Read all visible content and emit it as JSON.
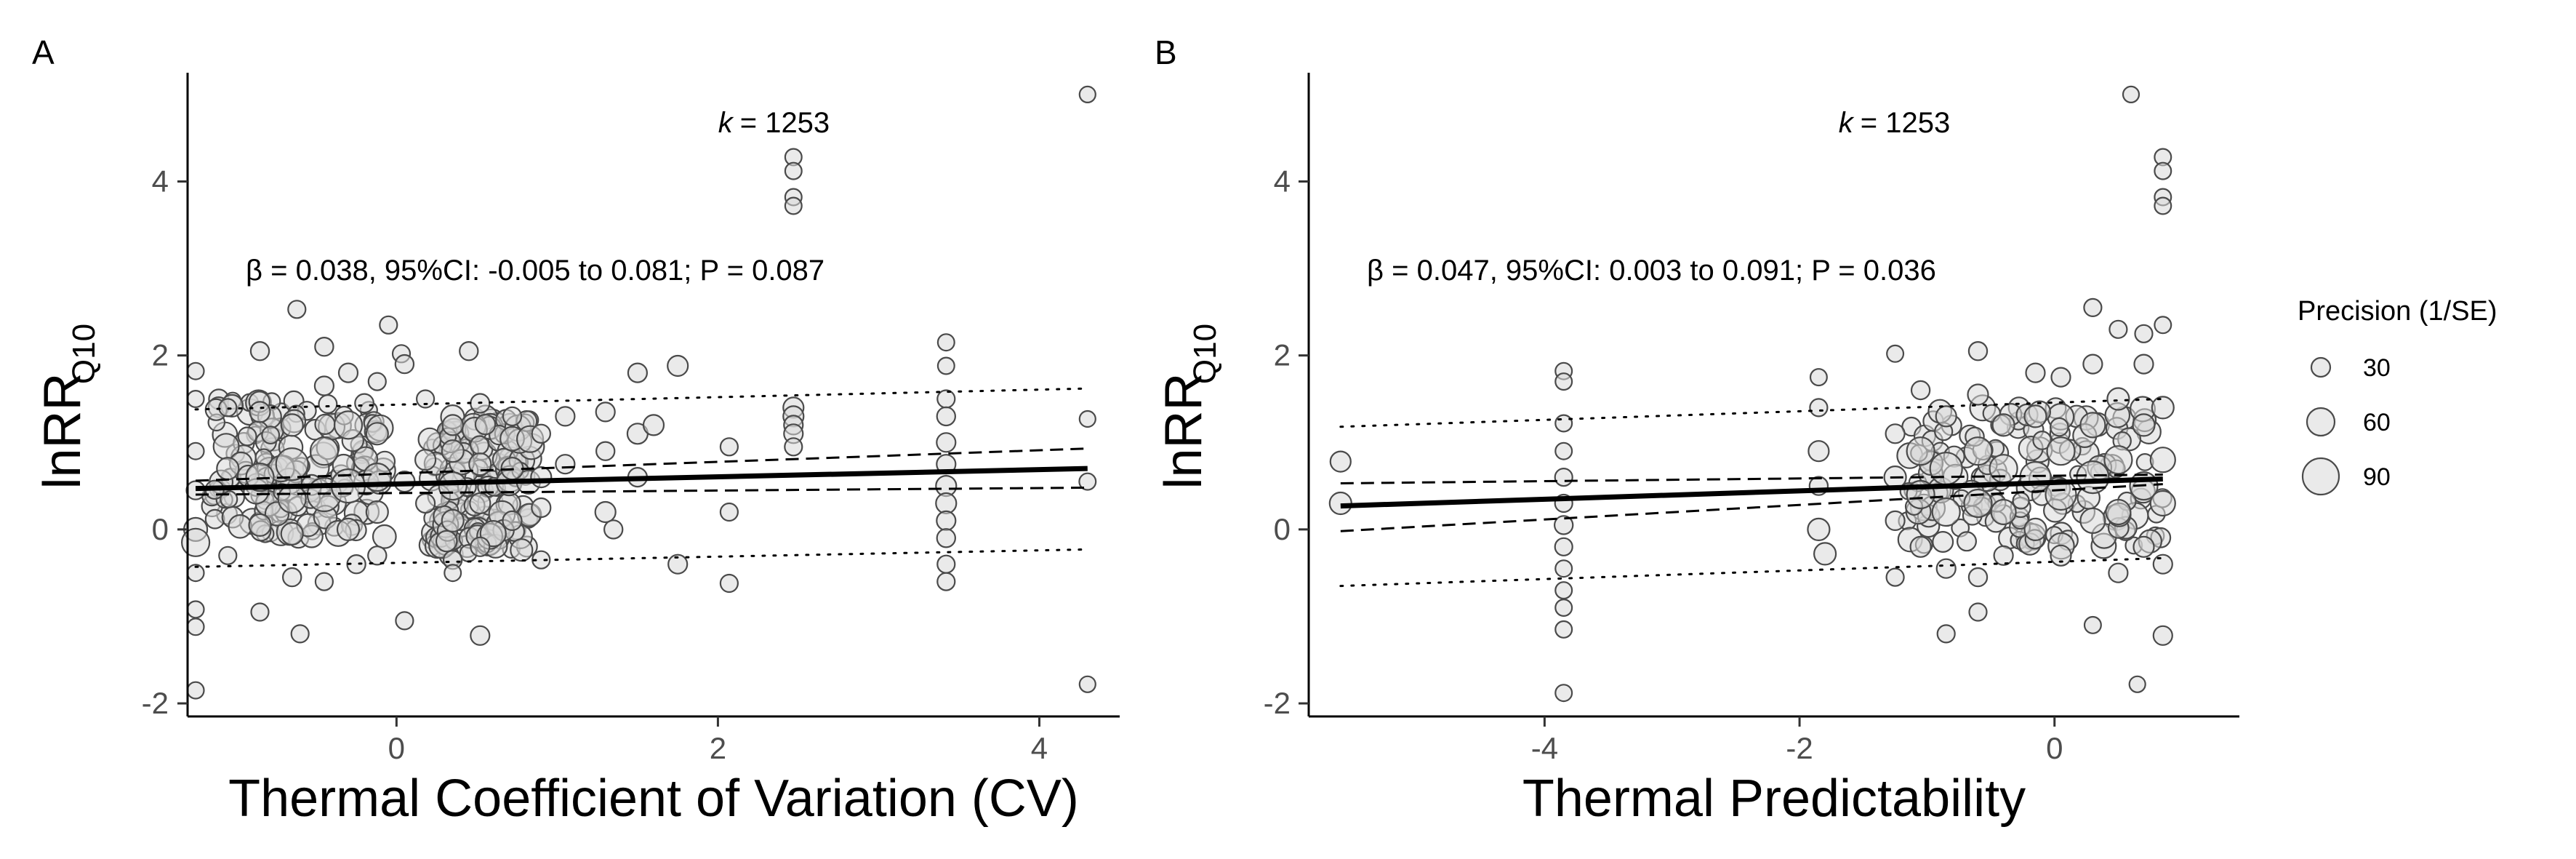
{
  "colors": {
    "point_fill": "#d9d9d9",
    "point_stroke": "#4a4a4a",
    "axis": "#000000",
    "tick_text": "#4d4d4d"
  },
  "legend": {
    "title": "Precision (1/SE)",
    "items": [
      {
        "label": "30",
        "value": 30
      },
      {
        "label": "60",
        "value": 60
      },
      {
        "label": "90",
        "value": 90
      }
    ]
  },
  "chart_data": [
    {
      "panel": "A",
      "type": "scatter",
      "xlabel": "Thermal Coefficient of Variation (CV)",
      "ylabel": "lnRR",
      "ylabel_subscript": "Q10",
      "annotation_k_label": "k",
      "annotation_k_value": "= 1253",
      "stat_text": "β = 0.038, 95%CI: -0.005 to 0.081; P = 0.087",
      "xlim": [
        -1.3,
        4.5
      ],
      "ylim": [
        -2.15,
        5.25
      ],
      "xticks": [
        0,
        2,
        4
      ],
      "yticks": [
        -2,
        0,
        2,
        4
      ],
      "fit": {
        "x0": -1.25,
        "x1": 4.3,
        "y0": 0.47,
        "y1": 0.7
      },
      "ci_upper": {
        "x0": -1.25,
        "x1": 4.3,
        "y0": 0.56,
        "y1": 0.93
      },
      "ci_lower": {
        "x0": -1.25,
        "x1": 4.3,
        "y0": 0.4,
        "y1": 0.48
      },
      "pi_upper": {
        "x0": -1.25,
        "x1": 4.3,
        "y0": 1.38,
        "y1": 1.62
      },
      "pi_lower": {
        "x0": -1.25,
        "x1": 4.3,
        "y0": -0.43,
        "y1": -0.23
      },
      "points": [
        [
          4.3,
          5.0,
          20
        ],
        [
          2.47,
          4.28,
          22
        ],
        [
          2.47,
          4.12,
          22
        ],
        [
          2.47,
          3.82,
          22
        ],
        [
          2.47,
          3.72,
          22
        ],
        [
          4.3,
          1.27,
          20
        ],
        [
          4.3,
          0.55,
          22
        ],
        [
          4.3,
          -1.78,
          20
        ],
        [
          -0.62,
          2.53,
          25
        ],
        [
          -0.05,
          2.35,
          25
        ],
        [
          0.45,
          2.05,
          28
        ],
        [
          0.03,
          2.02,
          25
        ],
        [
          -1.25,
          1.82,
          22
        ],
        [
          -1.25,
          1.5,
          22
        ],
        [
          -1.25,
          0.9,
          22
        ],
        [
          -1.25,
          0.45,
          28
        ],
        [
          -1.25,
          0.0,
          45
        ],
        [
          -1.25,
          -0.15,
          60
        ],
        [
          -1.25,
          -0.5,
          22
        ],
        [
          -1.25,
          -0.92,
          22
        ],
        [
          -1.25,
          -1.12,
          22
        ],
        [
          -1.25,
          -1.85,
          22
        ],
        [
          -1.05,
          1.4,
          25
        ],
        [
          -1.05,
          0.7,
          40
        ],
        [
          -1.05,
          -0.3,
          25
        ],
        [
          -0.85,
          2.05,
          28
        ],
        [
          -0.85,
          1.35,
          35
        ],
        [
          -0.85,
          0.6,
          60
        ],
        [
          -0.85,
          0.05,
          40
        ],
        [
          -0.85,
          -0.95,
          25
        ],
        [
          -0.65,
          1.2,
          40
        ],
        [
          -0.65,
          0.75,
          75
        ],
        [
          -0.65,
          0.35,
          60
        ],
        [
          -0.65,
          -0.05,
          40
        ],
        [
          -0.65,
          -0.55,
          28
        ],
        [
          -0.6,
          -1.2,
          25
        ],
        [
          -0.45,
          2.1,
          28
        ],
        [
          -0.45,
          1.65,
          30
        ],
        [
          -0.45,
          0.9,
          60
        ],
        [
          -0.45,
          0.4,
          80
        ],
        [
          -0.45,
          -0.6,
          25
        ],
        [
          -0.3,
          1.8,
          30
        ],
        [
          -0.3,
          1.2,
          60
        ],
        [
          -0.3,
          0.5,
          80
        ],
        [
          -0.3,
          0.0,
          40
        ],
        [
          -0.25,
          -0.4,
          28
        ],
        [
          -0.12,
          1.7,
          25
        ],
        [
          -0.12,
          1.1,
          40
        ],
        [
          -0.12,
          0.6,
          60
        ],
        [
          -0.12,
          0.2,
          40
        ],
        [
          -0.12,
          -0.3,
          28
        ],
        [
          0.05,
          1.9,
          28
        ],
        [
          0.05,
          0.55,
          35
        ],
        [
          0.05,
          -1.05,
          25
        ],
        [
          0.18,
          1.5,
          25
        ],
        [
          0.18,
          0.8,
          35
        ],
        [
          0.18,
          0.3,
          30
        ],
        [
          0.35,
          1.2,
          35
        ],
        [
          0.35,
          0.9,
          40
        ],
        [
          0.35,
          0.5,
          60
        ],
        [
          0.35,
          0.1,
          40
        ],
        [
          0.35,
          -0.35,
          28
        ],
        [
          0.35,
          -0.5,
          22
        ],
        [
          0.52,
          1.45,
          30
        ],
        [
          0.52,
          0.75,
          40
        ],
        [
          0.52,
          0.3,
          35
        ],
        [
          0.52,
          -0.2,
          30
        ],
        [
          0.52,
          -1.22,
          30
        ],
        [
          0.72,
          1.3,
          28
        ],
        [
          0.72,
          0.7,
          40
        ],
        [
          0.72,
          0.1,
          30
        ],
        [
          0.9,
          1.1,
          28
        ],
        [
          0.9,
          0.6,
          35
        ],
        [
          0.9,
          0.25,
          30
        ],
        [
          0.9,
          -0.35,
          25
        ],
        [
          1.05,
          1.3,
          30
        ],
        [
          1.05,
          0.75,
          30
        ],
        [
          1.3,
          1.35,
          30
        ],
        [
          1.3,
          0.9,
          28
        ],
        [
          1.3,
          0.2,
          35
        ],
        [
          1.35,
          0.0,
          28
        ],
        [
          1.5,
          1.8,
          30
        ],
        [
          1.5,
          1.1,
          35
        ],
        [
          1.5,
          0.6,
          30
        ],
        [
          1.6,
          1.2,
          35
        ],
        [
          1.75,
          1.88,
          35
        ],
        [
          1.75,
          -0.4,
          30
        ],
        [
          2.07,
          0.95,
          25
        ],
        [
          2.07,
          0.2,
          25
        ],
        [
          2.07,
          -0.62,
          25
        ],
        [
          2.47,
          1.4,
          35
        ],
        [
          2.47,
          1.3,
          35
        ],
        [
          2.47,
          1.2,
          30
        ],
        [
          2.47,
          1.1,
          30
        ],
        [
          2.47,
          0.95,
          25
        ],
        [
          3.42,
          2.15,
          22
        ],
        [
          3.42,
          1.88,
          22
        ],
        [
          3.42,
          1.5,
          25
        ],
        [
          3.42,
          1.3,
          28
        ],
        [
          3.42,
          1.0,
          30
        ],
        [
          3.42,
          0.75,
          30
        ],
        [
          3.42,
          0.5,
          35
        ],
        [
          3.42,
          0.3,
          35
        ],
        [
          3.42,
          0.1,
          30
        ],
        [
          3.42,
          -0.1,
          28
        ],
        [
          3.42,
          -0.4,
          25
        ],
        [
          3.42,
          -0.6,
          25
        ]
      ],
      "cluster_bands": [
        [
          -1.15,
          -0.05,
          -0.1,
          1.5
        ],
        [
          0.2,
          0.85,
          -0.3,
          1.3
        ]
      ]
    },
    {
      "panel": "B",
      "type": "scatter",
      "xlabel": "Thermal Predictability",
      "ylabel": "lnRR",
      "ylabel_subscript": "Q10",
      "annotation_k_label": "k",
      "annotation_k_value": "= 1253",
      "stat_text": "β = 0.047, 95%CI: 0.003 to 0.091; P = 0.036",
      "xlim": [
        -5.85,
        1.45
      ],
      "ylim": [
        -2.15,
        5.25
      ],
      "xticks": [
        -4,
        -2,
        0
      ],
      "yticks": [
        -2,
        0,
        2,
        4
      ],
      "fit": {
        "x0": -5.6,
        "x1": 0.85,
        "y0": 0.27,
        "y1": 0.58
      },
      "ci_upper": {
        "x0": -5.6,
        "x1": 0.85,
        "y0": 0.53,
        "y1": 0.63
      },
      "ci_lower": {
        "x0": -5.6,
        "x1": 0.85,
        "y0": -0.02,
        "y1": 0.52
      },
      "pi_upper": {
        "x0": -5.6,
        "x1": 0.85,
        "y0": 1.18,
        "y1": 1.5
      },
      "pi_lower": {
        "x0": -5.6,
        "x1": 0.85,
        "y0": -0.65,
        "y1": -0.33
      },
      "points": [
        [
          0.6,
          5.0,
          20
        ],
        [
          0.85,
          4.28,
          22
        ],
        [
          0.85,
          4.12,
          22
        ],
        [
          0.85,
          3.82,
          22
        ],
        [
          0.85,
          3.72,
          22
        ],
        [
          -5.6,
          0.78,
          35
        ],
        [
          -5.6,
          0.3,
          40
        ],
        [
          -3.85,
          1.82,
          22
        ],
        [
          -3.85,
          1.7,
          22
        ],
        [
          -3.85,
          1.22,
          22
        ],
        [
          -3.85,
          0.9,
          22
        ],
        [
          -3.85,
          0.6,
          25
        ],
        [
          -3.85,
          0.3,
          25
        ],
        [
          -3.85,
          0.05,
          28
        ],
        [
          -3.85,
          -0.2,
          25
        ],
        [
          -3.85,
          -0.45,
          22
        ],
        [
          -3.85,
          -0.7,
          22
        ],
        [
          -3.85,
          -0.9,
          22
        ],
        [
          -3.85,
          -1.15,
          22
        ],
        [
          -3.85,
          -1.88,
          22
        ],
        [
          -1.85,
          1.75,
          22
        ],
        [
          -1.85,
          1.4,
          25
        ],
        [
          -1.85,
          0.9,
          35
        ],
        [
          -1.85,
          0.5,
          28
        ],
        [
          -1.85,
          0.0,
          40
        ],
        [
          -1.8,
          -0.28,
          40
        ],
        [
          -1.25,
          2.02,
          22
        ],
        [
          -1.25,
          1.1,
          30
        ],
        [
          -1.25,
          0.6,
          40
        ],
        [
          -1.25,
          0.1,
          30
        ],
        [
          -1.25,
          -0.55,
          25
        ],
        [
          -1.05,
          1.6,
          28
        ],
        [
          -1.05,
          0.9,
          60
        ],
        [
          -1.05,
          0.4,
          60
        ],
        [
          -1.05,
          -0.2,
          35
        ],
        [
          -0.85,
          1.3,
          35
        ],
        [
          -0.85,
          0.7,
          75
        ],
        [
          -0.85,
          0.2,
          60
        ],
        [
          -0.85,
          -0.45,
          30
        ],
        [
          -0.85,
          -1.2,
          25
        ],
        [
          -0.6,
          2.05,
          28
        ],
        [
          -0.6,
          1.55,
          35
        ],
        [
          -0.6,
          0.9,
          60
        ],
        [
          -0.6,
          0.3,
          60
        ],
        [
          -0.6,
          -0.55,
          28
        ],
        [
          -0.6,
          -0.95,
          25
        ],
        [
          -0.4,
          1.2,
          40
        ],
        [
          -0.4,
          0.7,
          60
        ],
        [
          -0.4,
          0.2,
          50
        ],
        [
          -0.4,
          -0.3,
          30
        ],
        [
          -0.15,
          1.8,
          30
        ],
        [
          -0.15,
          1.3,
          40
        ],
        [
          -0.15,
          0.6,
          70
        ],
        [
          -0.15,
          0.0,
          40
        ],
        [
          0.05,
          1.75,
          30
        ],
        [
          0.05,
          0.9,
          60
        ],
        [
          0.05,
          0.4,
          70
        ],
        [
          0.05,
          -0.3,
          35
        ],
        [
          0.3,
          2.55,
          25
        ],
        [
          0.3,
          1.9,
          30
        ],
        [
          0.3,
          1.2,
          50
        ],
        [
          0.3,
          0.6,
          75
        ],
        [
          0.3,
          0.1,
          50
        ],
        [
          0.3,
          -1.1,
          22
        ],
        [
          0.5,
          2.3,
          25
        ],
        [
          0.5,
          1.5,
          40
        ],
        [
          0.5,
          0.8,
          60
        ],
        [
          0.5,
          0.2,
          50
        ],
        [
          0.5,
          -0.5,
          30
        ],
        [
          0.7,
          2.25,
          25
        ],
        [
          0.7,
          1.9,
          30
        ],
        [
          0.7,
          1.2,
          40
        ],
        [
          0.7,
          0.5,
          60
        ],
        [
          0.7,
          -0.2,
          35
        ],
        [
          0.65,
          -1.78,
          20
        ],
        [
          0.85,
          2.35,
          22
        ],
        [
          0.85,
          1.4,
          40
        ],
        [
          0.85,
          0.8,
          50
        ],
        [
          0.85,
          0.3,
          50
        ],
        [
          0.85,
          -0.4,
          30
        ],
        [
          0.85,
          -1.22,
          30
        ]
      ],
      "cluster_bands": [
        [
          -1.2,
          0.85,
          -0.2,
          1.4
        ]
      ]
    }
  ]
}
